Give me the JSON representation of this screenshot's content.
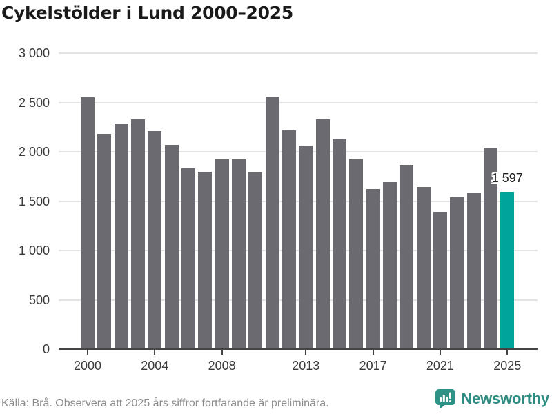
{
  "title": "Cykelstölder i Lund 2000–2025",
  "footer": {
    "source_note": "Källa: Brå. Observera att 2025 års siffror fortfarande är preliminära."
  },
  "branding": {
    "logo_text": "Newsworthy",
    "logo_icon": "bar-chart-speech-bubble-icon",
    "logo_color": "#2e8c82"
  },
  "colors": {
    "bar": "#6a6a70",
    "highlight": "#00a49b",
    "grid": "#e3e3e3",
    "axis": "#454545",
    "axis_text": "#3a3a3a",
    "title_text": "#1a1a1a",
    "footer_text": "#8c8c8c",
    "annotation_text": "#1d1d1f"
  },
  "chart_data": {
    "type": "bar",
    "title": "Cykelstölder i Lund 2000–2025",
    "xlabel": "",
    "ylabel": "",
    "ylim": [
      0,
      3000
    ],
    "grid": true,
    "legend": "none",
    "x": [
      2000,
      2001,
      2002,
      2003,
      2004,
      2005,
      2006,
      2007,
      2008,
      2009,
      2010,
      2011,
      2012,
      2013,
      2014,
      2015,
      2016,
      2017,
      2018,
      2019,
      2020,
      2021,
      2022,
      2023,
      2024,
      2025
    ],
    "values": [
      2550,
      2180,
      2290,
      2330,
      2210,
      2070,
      1830,
      1800,
      1920,
      1920,
      1790,
      2560,
      2220,
      2060,
      2330,
      2130,
      1920,
      1620,
      1690,
      1870,
      1640,
      1390,
      1540,
      1580,
      2040,
      1597
    ],
    "highlight_x": 2025,
    "annotation": {
      "x": 2025,
      "value": 1597,
      "label": "1 597"
    },
    "y_ticks": [
      {
        "value": 0,
        "label": "0"
      },
      {
        "value": 500,
        "label": "500"
      },
      {
        "value": 1000,
        "label": "1 000"
      },
      {
        "value": 1500,
        "label": "1 500"
      },
      {
        "value": 2000,
        "label": "2 000"
      },
      {
        "value": 2500,
        "label": "2 500"
      },
      {
        "value": 3000,
        "label": "3 000"
      }
    ],
    "x_ticks": [
      2000,
      2004,
      2008,
      2013,
      2017,
      2021,
      2025
    ]
  }
}
